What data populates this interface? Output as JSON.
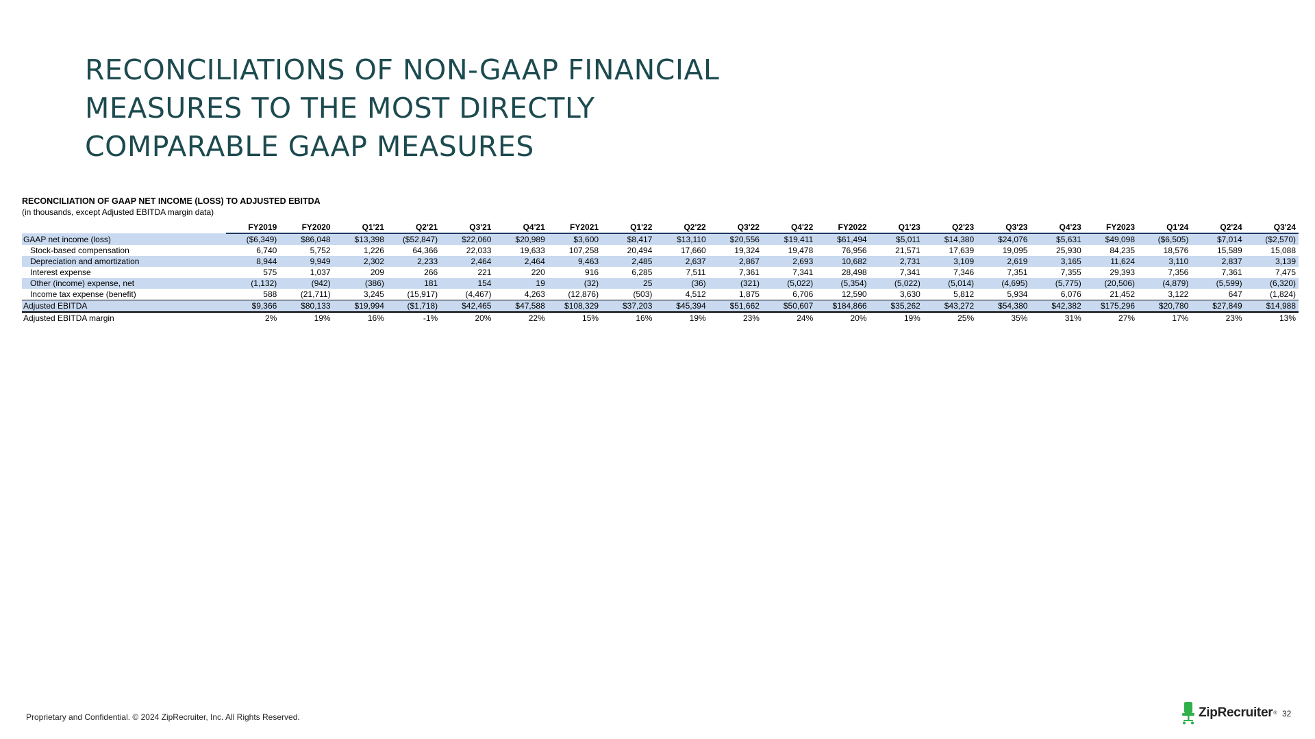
{
  "title_lines": [
    "RECONCILIATIONS OF NON-GAAP FINANCIAL",
    "MEASURES TO THE MOST DIRECTLY",
    "COMPARABLE GAAP MEASURES"
  ],
  "table": {
    "heading": "RECONCILIATION OF GAAP NET INCOME (LOSS) TO ADJUSTED EBITDA",
    "subheading": "(in thousands, except Adjusted EBITDA margin data)",
    "columns": [
      "FY2019",
      "FY2020",
      "Q1'21",
      "Q2'21",
      "Q3'21",
      "Q4'21",
      "FY2021",
      "Q1'22",
      "Q2'22",
      "Q3'22",
      "Q4'22",
      "FY2022",
      "Q1'23",
      "Q2'23",
      "Q3'23",
      "Q4'23",
      "FY2023",
      "Q1'24",
      "Q2'24",
      "Q3'24"
    ],
    "rows": [
      {
        "label": "GAAP net income (loss)",
        "indent": false,
        "band": true,
        "total": false,
        "values": [
          "($6,349)",
          "$86,048",
          "$13,398",
          "($52,847)",
          "$22,060",
          "$20,989",
          "$3,600",
          "$8,417",
          "$13,110",
          "$20,556",
          "$19,411",
          "$61,494",
          "$5,011",
          "$14,380",
          "$24,076",
          "$5,631",
          "$49,098",
          "($6,505)",
          "$7,014",
          "($2,570)"
        ]
      },
      {
        "label": "Stock-based compensation",
        "indent": true,
        "band": false,
        "total": false,
        "values": [
          "6,740",
          "5,752",
          "1,226",
          "64,366",
          "22,033",
          "19,633",
          "107,258",
          "20,494",
          "17,660",
          "19,324",
          "19,478",
          "76,956",
          "21,571",
          "17,639",
          "19,095",
          "25,930",
          "84,235",
          "18,576",
          "15,589",
          "15,088"
        ]
      },
      {
        "label": "Depreciation and amortization",
        "indent": true,
        "band": true,
        "total": false,
        "values": [
          "8,944",
          "9,949",
          "2,302",
          "2,233",
          "2,464",
          "2,464",
          "9,463",
          "2,485",
          "2,637",
          "2,867",
          "2,693",
          "10,682",
          "2,731",
          "3,109",
          "2,619",
          "3,165",
          "11,624",
          "3,110",
          "2,837",
          "3,139"
        ]
      },
      {
        "label": "Interest expense",
        "indent": true,
        "band": false,
        "total": false,
        "values": [
          "575",
          "1,037",
          "209",
          "266",
          "221",
          "220",
          "916",
          "6,285",
          "7,511",
          "7,361",
          "7,341",
          "28,498",
          "7,341",
          "7,346",
          "7,351",
          "7,355",
          "29,393",
          "7,356",
          "7,361",
          "7,475"
        ]
      },
      {
        "label": "Other (income) expense, net",
        "indent": true,
        "band": true,
        "total": false,
        "values": [
          "(1,132)",
          "(942)",
          "(386)",
          "181",
          "154",
          "19",
          "(32)",
          "25",
          "(36)",
          "(321)",
          "(5,022)",
          "(5,354)",
          "(5,022)",
          "(5,014)",
          "(4,695)",
          "(5,775)",
          "(20,506)",
          "(4,879)",
          "(5,599)",
          "(6,320)"
        ]
      },
      {
        "label": "Income tax expense (benefit)",
        "indent": true,
        "band": false,
        "total": false,
        "values": [
          "588",
          "(21,711)",
          "3,245",
          "(15,917)",
          "(4,467)",
          "4,263",
          "(12,876)",
          "(503)",
          "4,512",
          "1,875",
          "6,706",
          "12,590",
          "3,630",
          "5,812",
          "5,934",
          "6,076",
          "21,452",
          "3,122",
          "647",
          "(1,824)"
        ]
      },
      {
        "label": "Adjusted EBITDA",
        "indent": false,
        "band": true,
        "total": true,
        "values": [
          "$9,366",
          "$80,133",
          "$19,994",
          "($1,718)",
          "$42,465",
          "$47,588",
          "$108,329",
          "$37,203",
          "$45,394",
          "$51,662",
          "$50,607",
          "$184,866",
          "$35,262",
          "$43,272",
          "$54,380",
          "$42,382",
          "$175,296",
          "$20,780",
          "$27,849",
          "$14,988"
        ]
      },
      {
        "label": "Adjusted EBITDA margin",
        "indent": false,
        "band": false,
        "total": false,
        "values": [
          "2%",
          "19%",
          "16%",
          "-1%",
          "20%",
          "22%",
          "15%",
          "16%",
          "19%",
          "23%",
          "24%",
          "20%",
          "19%",
          "25%",
          "35%",
          "31%",
          "27%",
          "17%",
          "23%",
          "13%"
        ]
      }
    ]
  },
  "footer": {
    "confidential": "Proprietary and Confidential. © 2024 ZipRecruiter, Inc. All Rights Reserved.",
    "brand_name": "ZipRecruiter",
    "brand_tm": "®",
    "page_number": "32"
  },
  "colors": {
    "title": "#1c4a4f",
    "band": "#c9daf0",
    "brand_green": "#2fb04a"
  }
}
